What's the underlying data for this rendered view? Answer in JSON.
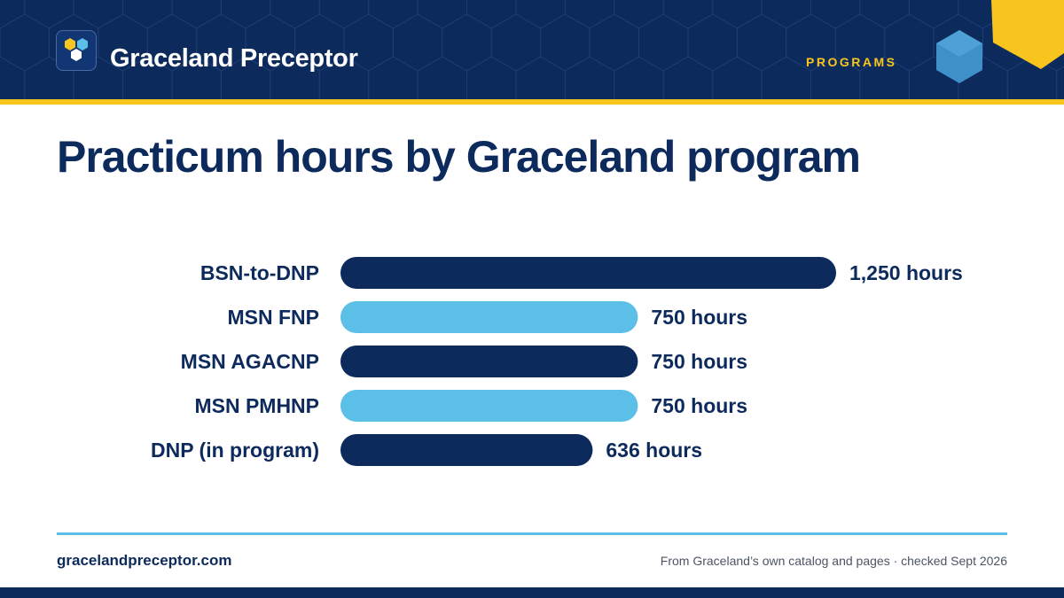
{
  "header": {
    "brand": "Graceland Preceptor",
    "section": "PROGRAMS"
  },
  "colors": {
    "navy": "#0d2a5c",
    "sky": "#5cbfe8",
    "gold": "#f7c51e"
  },
  "icons": {
    "logo": "hexagon-cluster-icon",
    "decoration": "hexagon-icon"
  },
  "chart_data": {
    "type": "bar",
    "orientation": "horizontal",
    "title": "Practicum hours by Graceland program",
    "categories": [
      "BSN-to-DNP",
      "MSN FNP",
      "MSN AGACNP",
      "MSN PMHNP",
      "DNP (in program)"
    ],
    "values": [
      1250,
      750,
      750,
      750,
      636
    ],
    "value_labels": [
      "1,250 hours",
      "750 hours",
      "750 hours",
      "750 hours",
      "636 hours"
    ],
    "bar_colors": [
      "#0d2a5c",
      "#5cbfe8",
      "#0d2a5c",
      "#5cbfe8",
      "#0d2a5c"
    ],
    "xlim": [
      0,
      1250
    ],
    "grid": false,
    "legend": "none"
  },
  "footer": {
    "site": "gracelandpreceptor.com",
    "source": "From Graceland’s own catalog and pages · checked Sept 2026"
  }
}
